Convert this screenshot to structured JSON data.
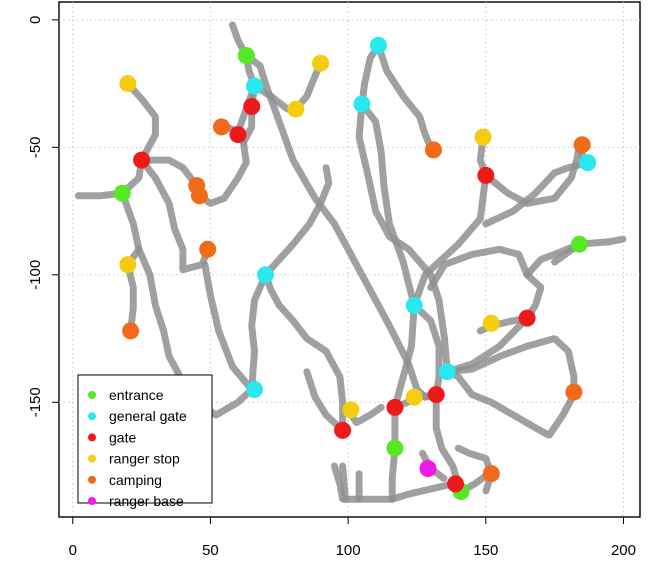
{
  "chart_data": {
    "type": "scatter",
    "title": "",
    "xlabel": "",
    "ylabel": "",
    "xlim": [
      -5,
      206
    ],
    "ylim": [
      -195,
      7
    ],
    "x_ticks": [
      0,
      50,
      100,
      150,
      200
    ],
    "y_ticks": [
      0,
      -50,
      -100,
      -150
    ],
    "grid": true,
    "legend_position": "bottom-left",
    "paths": [
      [
        [
          2,
          -69
        ],
        [
          10,
          -69
        ],
        [
          18,
          -68
        ],
        [
          24,
          -62
        ],
        [
          25,
          -55
        ],
        [
          30,
          -45
        ],
        [
          30,
          -38
        ],
        [
          25,
          -31
        ],
        [
          20,
          -25
        ]
      ],
      [
        [
          18,
          -68
        ],
        [
          22,
          -80
        ],
        [
          24,
          -90
        ],
        [
          20,
          -96
        ]
      ],
      [
        [
          20,
          -96
        ],
        [
          22,
          -105
        ],
        [
          22,
          -113
        ],
        [
          21,
          -122
        ]
      ],
      [
        [
          25,
          -55
        ],
        [
          35,
          -55
        ],
        [
          40,
          -58
        ],
        [
          45,
          -65
        ],
        [
          46,
          -69
        ]
      ],
      [
        [
          25,
          -55
        ],
        [
          30,
          -62
        ],
        [
          35,
          -72
        ],
        [
          37,
          -82
        ],
        [
          40,
          -90
        ],
        [
          40,
          -98
        ],
        [
          47,
          -96
        ],
        [
          49,
          -90
        ]
      ],
      [
        [
          46,
          -69
        ],
        [
          50,
          -72
        ],
        [
          55,
          -70
        ],
        [
          60,
          -62
        ],
        [
          63,
          -56
        ],
        [
          62,
          -48
        ],
        [
          60,
          -44
        ],
        [
          56,
          -42
        ],
        [
          53,
          -42
        ]
      ],
      [
        [
          62,
          -48
        ],
        [
          65,
          -42
        ],
        [
          65,
          -34
        ],
        [
          66,
          -26
        ]
      ],
      [
        [
          60,
          -44
        ],
        [
          64,
          -32
        ],
        [
          66,
          -26
        ],
        [
          64,
          -20
        ],
        [
          63,
          -14
        ],
        [
          60,
          -8
        ],
        [
          58,
          -2
        ]
      ],
      [
        [
          66,
          -26
        ],
        [
          72,
          -30
        ],
        [
          78,
          -35
        ],
        [
          81,
          -35
        ],
        [
          85,
          -30
        ],
        [
          88,
          -22
        ],
        [
          90,
          -17
        ]
      ],
      [
        [
          63,
          -14
        ],
        [
          68,
          -18
        ],
        [
          70,
          -25
        ],
        [
          75,
          -40
        ],
        [
          80,
          -55
        ],
        [
          88,
          -70
        ],
        [
          95,
          -80
        ],
        [
          100,
          -90
        ],
        [
          105,
          -100
        ],
        [
          110,
          -110
        ],
        [
          115,
          -120
        ],
        [
          122,
          -135
        ],
        [
          125,
          -145
        ],
        [
          128,
          -148
        ],
        [
          132,
          -147
        ]
      ],
      [
        [
          70,
          -100
        ],
        [
          72,
          -106
        ],
        [
          75,
          -112
        ],
        [
          80,
          -118
        ],
        [
          85,
          -125
        ],
        [
          92,
          -130
        ],
        [
          97,
          -140
        ],
        [
          98,
          -150
        ],
        [
          98,
          -161
        ]
      ],
      [
        [
          70,
          -100
        ],
        [
          75,
          -94
        ],
        [
          80,
          -88
        ],
        [
          86,
          -80
        ],
        [
          90,
          -72
        ],
        [
          93,
          -64
        ],
        [
          92,
          -58
        ]
      ],
      [
        [
          70,
          -100
        ],
        [
          66,
          -110
        ],
        [
          65,
          -120
        ],
        [
          66,
          -130
        ],
        [
          65,
          -145
        ]
      ],
      [
        [
          65,
          -145
        ],
        [
          60,
          -150
        ],
        [
          52,
          -155
        ],
        [
          45,
          -150
        ],
        [
          40,
          -142
        ],
        [
          35,
          -132
        ],
        [
          33,
          -122
        ],
        [
          30,
          -112
        ],
        [
          28,
          -100
        ],
        [
          24,
          -90
        ]
      ],
      [
        [
          48,
          -96
        ],
        [
          50,
          -108
        ],
        [
          53,
          -122
        ],
        [
          58,
          -136
        ],
        [
          65,
          -145
        ]
      ],
      [
        [
          85,
          -138
        ],
        [
          88,
          -148
        ],
        [
          92,
          -155
        ],
        [
          98,
          -161
        ]
      ],
      [
        [
          100,
          -153
        ],
        [
          103,
          -158
        ],
        [
          108,
          -155
        ],
        [
          112,
          -152
        ]
      ],
      [
        [
          95,
          -175
        ],
        [
          97,
          -182
        ],
        [
          98,
          -188
        ],
        [
          104,
          -188
        ],
        [
          110,
          -188
        ],
        [
          116,
          -188
        ],
        [
          122,
          -186
        ],
        [
          130,
          -184
        ],
        [
          138,
          -182
        ],
        [
          141,
          -185
        ],
        [
          146,
          -182
        ],
        [
          151,
          -178
        ]
      ],
      [
        [
          98,
          -175
        ],
        [
          99,
          -188
        ]
      ],
      [
        [
          104,
          -188
        ],
        [
          104,
          -178
        ]
      ],
      [
        [
          111,
          -10
        ],
        [
          108,
          -15
        ],
        [
          106,
          -25
        ],
        [
          105,
          -33
        ],
        [
          110,
          -40
        ],
        [
          112,
          -52
        ],
        [
          113,
          -65
        ],
        [
          115,
          -80
        ],
        [
          120,
          -95
        ],
        [
          124,
          -112
        ]
      ],
      [
        [
          111,
          -10
        ],
        [
          114,
          -20
        ],
        [
          120,
          -30
        ],
        [
          126,
          -38
        ],
        [
          128,
          -45
        ],
        [
          130,
          -50
        ]
      ],
      [
        [
          105,
          -33
        ],
        [
          104,
          -46
        ],
        [
          107,
          -60
        ],
        [
          110,
          -75
        ],
        [
          115,
          -85
        ],
        [
          122,
          -90
        ],
        [
          126,
          -95
        ],
        [
          130,
          -100
        ],
        [
          133,
          -110
        ],
        [
          135,
          -125
        ],
        [
          136,
          -138
        ]
      ],
      [
        [
          124,
          -112
        ],
        [
          130,
          -118
        ],
        [
          133,
          -128
        ],
        [
          133,
          -140
        ],
        [
          132,
          -147
        ]
      ],
      [
        [
          132,
          -147
        ],
        [
          132,
          -160
        ],
        [
          134,
          -168
        ],
        [
          138,
          -175
        ],
        [
          140,
          -182
        ]
      ],
      [
        [
          132,
          -147
        ],
        [
          126,
          -148
        ],
        [
          117,
          -152
        ]
      ],
      [
        [
          117,
          -152
        ],
        [
          117,
          -168
        ],
        [
          116,
          -180
        ],
        [
          116,
          -188
        ]
      ],
      [
        [
          117,
          -152
        ],
        [
          120,
          -140
        ],
        [
          123,
          -128
        ],
        [
          124,
          -112
        ]
      ],
      [
        [
          124,
          -112
        ],
        [
          128,
          -100
        ],
        [
          133,
          -95
        ],
        [
          140,
          -88
        ],
        [
          148,
          -78
        ],
        [
          150,
          -61
        ]
      ],
      [
        [
          150,
          -61
        ],
        [
          148,
          -55
        ],
        [
          149,
          -46
        ]
      ],
      [
        [
          150,
          -61
        ],
        [
          158,
          -68
        ],
        [
          165,
          -72
        ],
        [
          175,
          -70
        ],
        [
          181,
          -62
        ],
        [
          183,
          -55
        ],
        [
          184,
          -49
        ]
      ],
      [
        [
          184,
          -49
        ],
        [
          186,
          -56
        ]
      ],
      [
        [
          130,
          -105
        ],
        [
          135,
          -96
        ],
        [
          145,
          -92
        ],
        [
          155,
          -90
        ],
        [
          162,
          -92
        ],
        [
          165,
          -100
        ],
        [
          170,
          -105
        ],
        [
          168,
          -112
        ],
        [
          165,
          -117
        ]
      ],
      [
        [
          150,
          -80
        ],
        [
          160,
          -75
        ],
        [
          168,
          -68
        ],
        [
          175,
          -60
        ],
        [
          180,
          -58
        ],
        [
          187,
          -56
        ]
      ],
      [
        [
          136,
          -138
        ],
        [
          145,
          -135
        ],
        [
          155,
          -128
        ],
        [
          165,
          -117
        ]
      ],
      [
        [
          136,
          -138
        ],
        [
          145,
          -137
        ],
        [
          155,
          -132
        ],
        [
          165,
          -128
        ],
        [
          175,
          -125
        ],
        [
          180,
          -130
        ],
        [
          182,
          -140
        ],
        [
          182,
          -147
        ]
      ],
      [
        [
          182,
          -147
        ],
        [
          178,
          -155
        ],
        [
          173,
          -163
        ],
        [
          168,
          -160
        ],
        [
          160,
          -155
        ],
        [
          152,
          -150
        ],
        [
          145,
          -147
        ],
        [
          140,
          -140
        ],
        [
          136,
          -138
        ]
      ],
      [
        [
          165,
          -117
        ],
        [
          160,
          -118
        ],
        [
          152,
          -120
        ],
        [
          148,
          -122
        ]
      ],
      [
        [
          175,
          -95
        ],
        [
          184,
          -88
        ],
        [
          195,
          -87
        ],
        [
          200,
          -86
        ]
      ],
      [
        [
          165,
          -100
        ],
        [
          170,
          -94
        ],
        [
          175,
          -92
        ],
        [
          184,
          -88
        ]
      ],
      [
        [
          140,
          -168
        ],
        [
          144,
          -170
        ],
        [
          150,
          -172
        ],
        [
          152,
          -178
        ],
        [
          150,
          -185
        ]
      ],
      [
        [
          127,
          -170
        ],
        [
          130,
          -176
        ],
        [
          135,
          -180
        ]
      ]
    ],
    "series": [
      {
        "name": "entrance",
        "color": "#55e825",
        "points": [
          [
            63,
            -14
          ],
          [
            18,
            -68
          ],
          [
            184,
            -88
          ],
          [
            117,
            -168
          ],
          [
            141,
            -185
          ]
        ]
      },
      {
        "name": "general gate",
        "color": "#29e8ee",
        "points": [
          [
            111,
            -10
          ],
          [
            66,
            -26
          ],
          [
            105,
            -33
          ],
          [
            187,
            -56
          ],
          [
            70,
            -100
          ],
          [
            124,
            -112
          ],
          [
            136,
            -138
          ],
          [
            66,
            -145
          ]
        ]
      },
      {
        "name": "gate",
        "color": "#ee1a1a",
        "points": [
          [
            65,
            -34
          ],
          [
            60,
            -45
          ],
          [
            25,
            -55
          ],
          [
            150,
            -61
          ],
          [
            165,
            -117
          ],
          [
            132,
            -147
          ],
          [
            117,
            -152
          ],
          [
            98,
            -161
          ],
          [
            139,
            -182
          ]
        ]
      },
      {
        "name": "ranger stop",
        "color": "#f4cc10",
        "points": [
          [
            20,
            -25
          ],
          [
            90,
            -17
          ],
          [
            81,
            -35
          ],
          [
            149,
            -46
          ],
          [
            20,
            -96
          ],
          [
            152,
            -119
          ],
          [
            124,
            -148
          ],
          [
            101,
            -153
          ]
        ]
      },
      {
        "name": "camping",
        "color": "#f06a1a",
        "points": [
          [
            54,
            -42
          ],
          [
            45,
            -65
          ],
          [
            46,
            -69
          ],
          [
            49,
            -90
          ],
          [
            21,
            -122
          ],
          [
            131,
            -51
          ],
          [
            185,
            -49
          ],
          [
            182,
            -146
          ],
          [
            152,
            -178
          ]
        ]
      },
      {
        "name": "ranger base",
        "color": "#f01ae8",
        "points": [
          [
            129,
            -176
          ]
        ]
      }
    ]
  }
}
